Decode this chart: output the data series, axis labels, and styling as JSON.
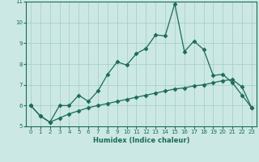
{
  "xlabel": "Humidex (Indice chaleur)",
  "x": [
    0,
    1,
    2,
    3,
    4,
    5,
    6,
    7,
    8,
    9,
    10,
    11,
    12,
    13,
    14,
    15,
    16,
    17,
    18,
    19,
    20,
    21,
    22,
    23
  ],
  "y_curve": [
    6.0,
    5.5,
    5.2,
    6.0,
    6.0,
    6.5,
    6.2,
    6.7,
    7.5,
    8.1,
    7.95,
    8.5,
    8.75,
    9.4,
    9.35,
    10.9,
    8.6,
    9.1,
    8.7,
    7.45,
    7.5,
    7.1,
    6.5,
    5.9
  ],
  "y_line": [
    6.0,
    5.5,
    5.2,
    5.4,
    5.6,
    5.75,
    5.9,
    6.0,
    6.1,
    6.2,
    6.3,
    6.4,
    6.5,
    6.6,
    6.7,
    6.8,
    6.85,
    6.95,
    7.0,
    7.1,
    7.2,
    7.25,
    6.9,
    5.9
  ],
  "ylim": [
    5.0,
    11.0
  ],
  "xlim_min": -0.5,
  "xlim_max": 23.5,
  "yticks": [
    5,
    6,
    7,
    8,
    9,
    10,
    11
  ],
  "xticks": [
    0,
    1,
    2,
    3,
    4,
    5,
    6,
    7,
    8,
    9,
    10,
    11,
    12,
    13,
    14,
    15,
    16,
    17,
    18,
    19,
    20,
    21,
    22,
    23
  ],
  "line_color": "#1a6b5a",
  "bg_color": "#cce8e4",
  "grid_color": "#aacfcb",
  "marker": "D",
  "markersize": 2.5,
  "linewidth": 0.9,
  "tick_fontsize": 5.0,
  "xlabel_fontsize": 6.0
}
